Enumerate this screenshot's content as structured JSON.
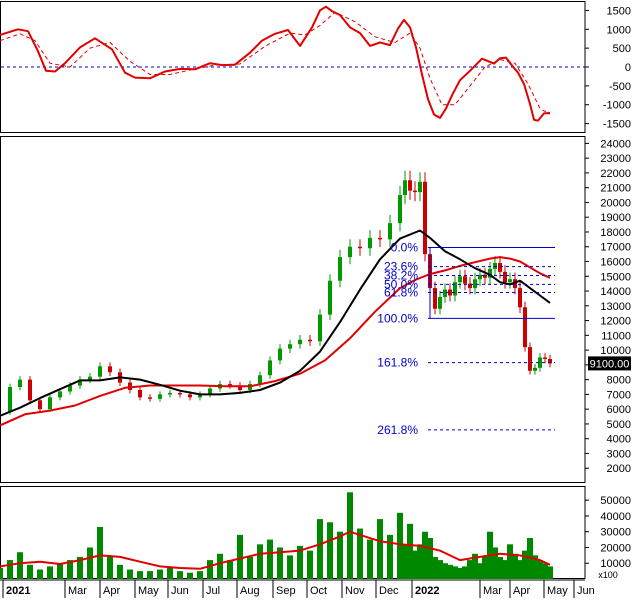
{
  "chart_data": [
    {
      "type": "line",
      "panel": "oscillator",
      "ylim": [
        -1750,
        1750
      ],
      "yticks": [
        1500,
        1000,
        500,
        0,
        -500,
        -1000,
        -1500
      ],
      "reference_line": 0,
      "colors": {
        "main": "#e00000",
        "signal": "#e00000",
        "reference": "#0000cc"
      },
      "series": [
        {
          "style": "solid",
          "x": [
            0,
            18,
            28,
            38,
            46,
            55,
            65,
            80,
            95,
            112,
            125,
            135,
            150,
            165,
            180,
            195,
            210,
            222,
            235,
            250,
            262,
            275,
            288,
            300,
            312,
            320,
            326,
            332,
            340,
            350,
            360,
            370,
            380,
            390,
            398,
            404,
            410,
            416,
            422,
            428,
            434,
            440,
            446,
            452,
            460,
            470,
            482,
            494,
            500,
            506,
            512,
            518,
            524,
            530,
            534,
            538,
            544,
            550
          ],
          "y": [
            850,
            1000,
            950,
            420,
            -100,
            -120,
            100,
            520,
            760,
            470,
            -150,
            -280,
            -300,
            -120,
            -50,
            -60,
            100,
            50,
            60,
            380,
            700,
            880,
            980,
            560,
            1050,
            1500,
            1600,
            1480,
            1380,
            1050,
            900,
            560,
            650,
            580,
            1020,
            1250,
            1050,
            520,
            -200,
            -850,
            -1260,
            -1350,
            -1100,
            -750,
            -350,
            -100,
            220,
            90,
            230,
            250,
            40,
            -150,
            -450,
            -980,
            -1400,
            -1420,
            -1230,
            -1220
          ]
        },
        {
          "style": "dashed",
          "x": [
            0,
            20,
            35,
            50,
            70,
            90,
            110,
            130,
            150,
            170,
            190,
            215,
            240,
            265,
            290,
            305,
            320,
            335,
            355,
            375,
            395,
            410,
            420,
            430,
            442,
            455,
            470,
            485,
            500,
            515,
            528,
            540,
            550
          ],
          "y": [
            700,
            880,
            700,
            100,
            0,
            500,
            650,
            150,
            -200,
            -200,
            -80,
            50,
            80,
            550,
            900,
            850,
            1100,
            1450,
            1200,
            800,
            650,
            900,
            500,
            -300,
            -1000,
            -1000,
            -500,
            0,
            200,
            100,
            -450,
            -1100,
            -1250
          ]
        }
      ]
    },
    {
      "type": "candlestick",
      "panel": "price",
      "ylim": [
        1000,
        24500
      ],
      "yticks": [
        2000,
        3000,
        4000,
        5000,
        6000,
        7000,
        8000,
        9000,
        10000,
        11000,
        12000,
        13000,
        14000,
        15000,
        16000,
        17000,
        18000,
        19000,
        20000,
        21000,
        22000,
        23000,
        24000
      ],
      "last_price_label": "9100.00",
      "colors": {
        "up": "#009900",
        "down": "#cc0000",
        "ma_long": "#e00000",
        "ma_short": "#000000",
        "fib_lines": "#0000cc",
        "fib_labels": "#0000cc",
        "last_price_bg": "#000000",
        "last_price_text": "#ffffff"
      },
      "fibonacci": [
        {
          "label": "0.0%",
          "value": 16950,
          "solid": true
        },
        {
          "label": "23.6%",
          "value": 15650,
          "solid": false
        },
        {
          "label": "38.2%",
          "value": 15050,
          "solid": false
        },
        {
          "label": "50.0%",
          "value": 14450,
          "solid": false
        },
        {
          "label": "61.8%",
          "value": 13900,
          "solid": false
        },
        {
          "label": "100.0%",
          "value": 12150,
          "solid": true
        },
        {
          "label": "161.8%",
          "value": 9150,
          "solid": false
        },
        {
          "label": "261.8%",
          "value": 4600,
          "solid": false
        }
      ],
      "series": [
        {
          "name": "",
          "style": "ma_long",
          "x": [
            0,
            25,
            50,
            75,
            100,
            125,
            150,
            175,
            200,
            225,
            250,
            275,
            300,
            325,
            350,
            375,
            400,
            415,
            430,
            445,
            460,
            475,
            490,
            500,
            510,
            520,
            530,
            540,
            550
          ],
          "y": [
            4900,
            5650,
            5900,
            6250,
            6900,
            7450,
            7600,
            7600,
            7600,
            7550,
            7550,
            7900,
            8400,
            9300,
            10800,
            12600,
            14200,
            14750,
            15150,
            15400,
            15700,
            15950,
            16200,
            16300,
            16200,
            16000,
            15600,
            15200,
            14900
          ]
        },
        {
          "name": "",
          "style": "ma_short",
          "x": [
            0,
            20,
            40,
            60,
            80,
            100,
            120,
            140,
            160,
            180,
            200,
            220,
            240,
            260,
            280,
            300,
            320,
            340,
            360,
            380,
            400,
            420,
            430,
            445,
            460,
            475,
            490,
            500,
            510,
            520,
            530,
            540,
            550
          ],
          "y": [
            5550,
            6100,
            6750,
            7350,
            7950,
            7950,
            8150,
            8000,
            7650,
            7250,
            7000,
            7000,
            7100,
            7300,
            7800,
            8600,
            9900,
            11900,
            14100,
            16150,
            17550,
            18100,
            17600,
            16700,
            16150,
            15550,
            15100,
            14600,
            14450,
            14700,
            14200,
            13700,
            13200
          ]
        },
        {
          "name": "",
          "style": "closes",
          "x": [
            0,
            10,
            20,
            30,
            40,
            50,
            60,
            70,
            80,
            90,
            100,
            110,
            120,
            130,
            140,
            150,
            160,
            170,
            180,
            190,
            200,
            210,
            220,
            230,
            240,
            250,
            260,
            270,
            280,
            290,
            300,
            310,
            320,
            330,
            340,
            350,
            360,
            370,
            380,
            390,
            400,
            405,
            410,
            415,
            420,
            425,
            430,
            435,
            440,
            445,
            450,
            455,
            460,
            465,
            470,
            475,
            480,
            485,
            490,
            495,
            500,
            505,
            510,
            515,
            520,
            525,
            530,
            535,
            540,
            545,
            550
          ],
          "y": [
            5800,
            7500,
            8000,
            6600,
            6000,
            6800,
            7200,
            7600,
            8000,
            8200,
            8900,
            8500,
            7800,
            7300,
            6800,
            6700,
            7000,
            7100,
            7000,
            6800,
            7000,
            7400,
            7700,
            7600,
            7300,
            7700,
            8300,
            9300,
            10100,
            10400,
            10700,
            10600,
            12400,
            14700,
            16300,
            17000,
            16900,
            17600,
            17500,
            18600,
            20500,
            21500,
            20800,
            20700,
            21400,
            16500,
            14200,
            12800,
            13600,
            14100,
            13700,
            14600,
            15000,
            14500,
            14200,
            14800,
            15100,
            14900,
            15500,
            15900,
            15300,
            14600,
            14800,
            14200,
            12900,
            10200,
            8600,
            8800,
            9500,
            9400,
            9100
          ]
        }
      ]
    },
    {
      "type": "bar",
      "panel": "volume",
      "ylim": [
        0,
        59000
      ],
      "yticks": [
        10000,
        20000,
        30000,
        40000,
        50000
      ],
      "unit_label": "x100",
      "colors": {
        "bars": "#008800",
        "ma": "#e00000"
      },
      "series": [
        {
          "name": "",
          "style": "volume",
          "x": [
            0,
            10,
            20,
            30,
            40,
            50,
            60,
            70,
            80,
            90,
            100,
            110,
            120,
            130,
            140,
            150,
            160,
            170,
            180,
            190,
            200,
            210,
            220,
            230,
            240,
            250,
            260,
            270,
            280,
            290,
            300,
            310,
            320,
            330,
            340,
            350,
            360,
            370,
            380,
            390,
            400,
            405,
            410,
            415,
            420,
            425,
            430,
            435,
            440,
            445,
            450,
            455,
            460,
            465,
            470,
            475,
            480,
            485,
            490,
            495,
            500,
            505,
            510,
            515,
            520,
            525,
            530,
            535,
            540,
            545,
            550
          ],
          "y": [
            7000,
            12000,
            17000,
            9000,
            6000,
            8000,
            10000,
            12000,
            14000,
            20000,
            33000,
            14000,
            9000,
            6000,
            5000,
            5000,
            6000,
            7000,
            5000,
            4000,
            5000,
            12000,
            16000,
            12000,
            28000,
            14000,
            22000,
            25000,
            20000,
            15000,
            21000,
            18000,
            38000,
            36000,
            30000,
            55000,
            32000,
            25000,
            38000,
            28000,
            42000,
            22000,
            35000,
            18000,
            22000,
            30000,
            26000,
            14000,
            12000,
            10000,
            9000,
            8000,
            7000,
            8000,
            12000,
            16000,
            10000,
            14000,
            30000,
            20000,
            14000,
            12000,
            22000,
            16000,
            12000,
            18000,
            26000,
            15000,
            12000,
            10000,
            8000
          ]
        },
        {
          "name": "",
          "style": "ma",
          "x": [
            0,
            20,
            40,
            60,
            80,
            100,
            120,
            140,
            160,
            180,
            200,
            220,
            240,
            260,
            280,
            300,
            320,
            340,
            350,
            360,
            380,
            400,
            420,
            440,
            460,
            480,
            500,
            520,
            540,
            550
          ],
          "y": [
            8000,
            10000,
            11000,
            9500,
            12000,
            15000,
            14000,
            11000,
            8000,
            7000,
            6500,
            10000,
            13000,
            16000,
            17000,
            18000,
            22000,
            27000,
            30000,
            28000,
            24000,
            22000,
            21000,
            18000,
            12000,
            14000,
            16000,
            15000,
            12000,
            9000
          ]
        }
      ]
    }
  ],
  "x_axis": {
    "labels": [
      "2021",
      "Mar",
      "Apr",
      "May",
      "Jun",
      "Jul",
      "Aug",
      "Sep",
      "Oct",
      "Nov",
      "Dec",
      "2022",
      "Mar",
      "Apr",
      "May",
      "Jun"
    ],
    "positions": [
      3,
      65,
      100,
      135,
      168,
      203,
      237,
      273,
      307,
      342,
      376,
      412,
      480,
      510,
      544,
      574
    ],
    "bold_labels": [
      "2021",
      "2022"
    ]
  }
}
